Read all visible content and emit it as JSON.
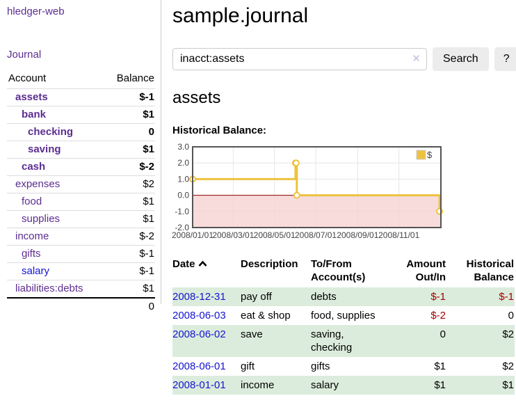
{
  "app": {
    "brand": "hledger-web",
    "nav_journal": "Journal"
  },
  "sidebar": {
    "header": {
      "account": "Account",
      "balance": "Balance"
    },
    "accounts": [
      {
        "name": "assets",
        "depth": 1,
        "bold": true,
        "balance": "$-1",
        "tone": "neg"
      },
      {
        "name": "bank",
        "depth": 2,
        "bold": true,
        "balance": "$1",
        "tone": ""
      },
      {
        "name": "checking",
        "depth": 3,
        "bold": true,
        "balance": "0",
        "tone": ""
      },
      {
        "name": "saving",
        "depth": 3,
        "bold": true,
        "balance": "$1",
        "tone": ""
      },
      {
        "name": "cash",
        "depth": 2,
        "bold": true,
        "balance": "$-2",
        "tone": "neg"
      },
      {
        "name": "expenses",
        "depth": 1,
        "bold": false,
        "balance": "$2",
        "tone": ""
      },
      {
        "name": "food",
        "depth": 2,
        "bold": false,
        "balance": "$1",
        "tone": ""
      },
      {
        "name": "supplies",
        "depth": 2,
        "bold": false,
        "balance": "$1",
        "tone": ""
      },
      {
        "name": "income",
        "depth": 1,
        "bold": false,
        "balance": "$-2",
        "tone": "rose"
      },
      {
        "name": "gifts",
        "depth": 2,
        "bold": false,
        "balance": "$-1",
        "tone": "rose"
      },
      {
        "name": "salary",
        "depth": 2,
        "bold": false,
        "blue": true,
        "balance": "$-1",
        "tone": "rose"
      },
      {
        "name": "liabilities:debts",
        "depth": 1,
        "bold": false,
        "balance": "$1",
        "tone": ""
      }
    ],
    "total": "0"
  },
  "header": {
    "title": "sample.journal"
  },
  "search": {
    "value": "inacct:assets",
    "clear_icon": "✕",
    "button": "Search",
    "help_button": "?"
  },
  "account_page": {
    "title": "assets",
    "chart_label": "Historical Balance:"
  },
  "chart_data": {
    "type": "line",
    "step": true,
    "title": "Historical Balance",
    "x_range": [
      "2008-01-01",
      "2009-01-02"
    ],
    "ylim": [
      -2,
      3
    ],
    "y_ticks": [
      {
        "v": 3,
        "label": "3.0"
      },
      {
        "v": 2,
        "label": "2.0"
      },
      {
        "v": 1,
        "label": "1.0"
      },
      {
        "v": 0,
        "label": "0.0"
      },
      {
        "v": -1,
        "label": "-1.0"
      },
      {
        "v": -2,
        "label": "-2.0"
      }
    ],
    "x_ticks": [
      {
        "d": "2008-01-01",
        "label": "2008/01/01"
      },
      {
        "d": "2008-03-01",
        "label": "2008/03/01"
      },
      {
        "d": "2008-05-01",
        "label": "2008/05/01"
      },
      {
        "d": "2008-07-01",
        "label": "2008/07/01"
      },
      {
        "d": "2008-09-01",
        "label": "2008/09/01"
      },
      {
        "d": "2008-11-01",
        "label": "2008/11/01"
      },
      {
        "d": "2009-01-01",
        "label": ""
      }
    ],
    "series": [
      {
        "name": "$",
        "color": "#edc240",
        "points": [
          [
            "2008-01-01",
            1
          ],
          [
            "2008-06-01",
            2
          ],
          [
            "2008-06-02",
            2
          ],
          [
            "2008-06-03",
            0
          ],
          [
            "2008-12-31",
            -1
          ]
        ]
      }
    ],
    "legend": {
      "label": "$",
      "position": "top-right"
    },
    "negative_fill": "#f6d2d2",
    "zero_line_color": "#8b0000",
    "grid_color": "#e6e6e6",
    "border_color": "#545454"
  },
  "register": {
    "columns": {
      "date": "Date",
      "description": "Description",
      "accounts": "To/From Account(s)",
      "amount": "Amount Out/In",
      "balance": "Historical Balance"
    },
    "rows": [
      {
        "date": "2008-12-31",
        "description": "pay off",
        "accounts": "debts",
        "amount": "$-1",
        "amount_neg": true,
        "balance": "$-1",
        "balance_neg": true
      },
      {
        "date": "2008-06-03",
        "description": "eat & shop",
        "accounts": "food, supplies",
        "amount": "$-2",
        "amount_neg": true,
        "balance": "0",
        "balance_neg": false
      },
      {
        "date": "2008-06-02",
        "description": "save",
        "accounts": "saving, checking",
        "amount": "0",
        "amount_neg": false,
        "balance": "$2",
        "balance_neg": false
      },
      {
        "date": "2008-06-01",
        "description": "gift",
        "accounts": "gifts",
        "amount": "$1",
        "amount_neg": false,
        "balance": "$2",
        "balance_neg": false
      },
      {
        "date": "2008-01-01",
        "description": "income",
        "accounts": "salary",
        "amount": "$1",
        "amount_neg": false,
        "balance": "$1",
        "balance_neg": false
      }
    ]
  },
  "colors": {
    "link-purple": "#5c2d91",
    "link-blue": "#1414d2",
    "negative": "#a40000",
    "negative-faded": "#bf6b6b",
    "row-green": "#dcecdc",
    "accent-gold": "#edc240",
    "divider": "#cccccc",
    "button-bg": "#ececec"
  }
}
